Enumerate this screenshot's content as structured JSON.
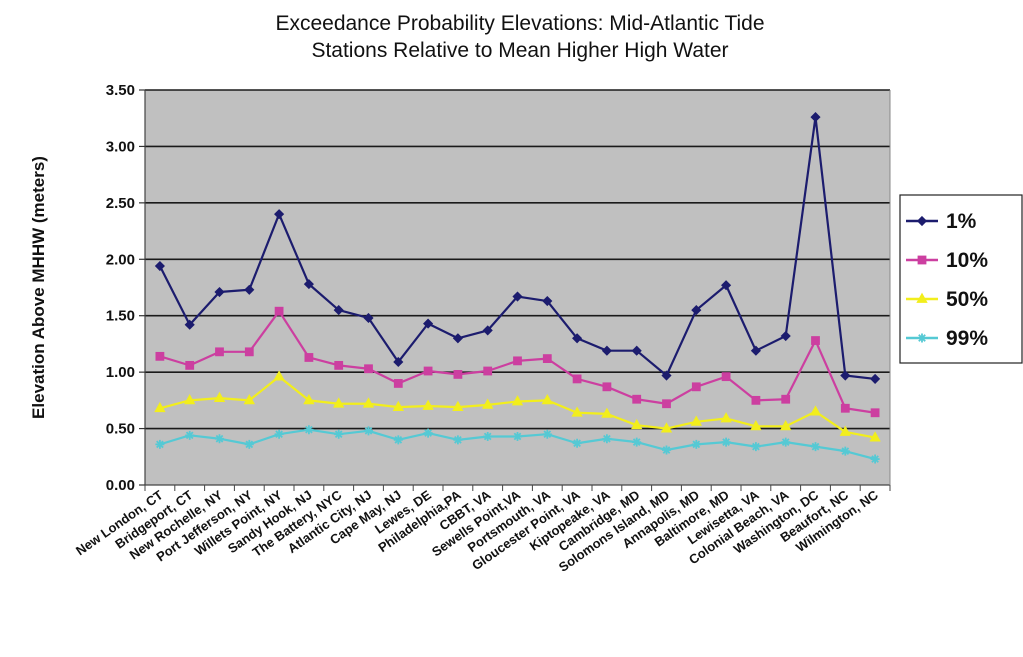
{
  "chart_data": {
    "type": "line",
    "title_line1": "Exceedance Probability Elevations: Mid-Atlantic Tide",
    "title_line2": "Stations Relative to Mean Higher High Water",
    "ylabel": "Elevation Above MHHW (meters)",
    "xlabel": "",
    "ylim": [
      0,
      3.5
    ],
    "yticks": [
      "0.00",
      "0.50",
      "1.00",
      "1.50",
      "2.00",
      "2.50",
      "3.00",
      "3.50"
    ],
    "grid": true,
    "legend_position": "right",
    "plot_background": "#c0c0c0",
    "categories": [
      "New London, CT",
      "Bridgeport, CT",
      "New Rochelle, NY",
      "Port Jefferson, NY",
      "Willets Point, NY",
      "Sandy Hook, NJ",
      "The Battery, NYC",
      "Atlantic City, NJ",
      "Cape May, NJ",
      "Lewes, DE",
      "Philadelphia,PA",
      "CBBT, VA",
      "Sewells Point,VA",
      "Portsmouth, VA",
      "Gloucester Point, VA",
      "Kiptopeake, VA",
      "Cambridge, MD",
      "Solomons Island, MD",
      "Annapolis, MD",
      "Baltimore, MD",
      "Lewisetta, VA",
      "Colonial Beach, VA",
      "Washington, DC",
      "Beaufort, NC",
      "Wilmington, NC"
    ],
    "series": [
      {
        "name": "1%",
        "color": "#1c1c6e",
        "marker": "diamond",
        "values": [
          1.94,
          1.42,
          1.71,
          1.73,
          2.4,
          1.78,
          1.55,
          1.48,
          1.09,
          1.43,
          1.3,
          1.37,
          1.67,
          1.63,
          1.3,
          1.19,
          1.19,
          0.97,
          1.55,
          1.77,
          1.19,
          1.32,
          3.26,
          0.97,
          0.94
        ]
      },
      {
        "name": "10%",
        "color": "#cc3fa0",
        "marker": "square",
        "values": [
          1.14,
          1.06,
          1.18,
          1.18,
          1.54,
          1.13,
          1.06,
          1.03,
          0.9,
          1.01,
          0.98,
          1.01,
          1.1,
          1.12,
          0.94,
          0.87,
          0.76,
          0.72,
          0.87,
          0.96,
          0.75,
          0.76,
          1.28,
          0.68,
          0.64
        ]
      },
      {
        "name": "50%",
        "color": "#f2ee1c",
        "marker": "triangle",
        "values": [
          0.68,
          0.75,
          0.77,
          0.75,
          0.96,
          0.75,
          0.72,
          0.72,
          0.69,
          0.7,
          0.69,
          0.71,
          0.74,
          0.75,
          0.64,
          0.63,
          0.53,
          0.5,
          0.56,
          0.59,
          0.52,
          0.52,
          0.65,
          0.47,
          0.42
        ]
      },
      {
        "name": "99%",
        "color": "#55c9d4",
        "marker": "star",
        "values": [
          0.36,
          0.44,
          0.41,
          0.36,
          0.45,
          0.49,
          0.45,
          0.48,
          0.4,
          0.46,
          0.4,
          0.43,
          0.43,
          0.45,
          0.37,
          0.41,
          0.38,
          0.31,
          0.36,
          0.38,
          0.34,
          0.38,
          0.34,
          0.3,
          0.23
        ]
      }
    ]
  }
}
